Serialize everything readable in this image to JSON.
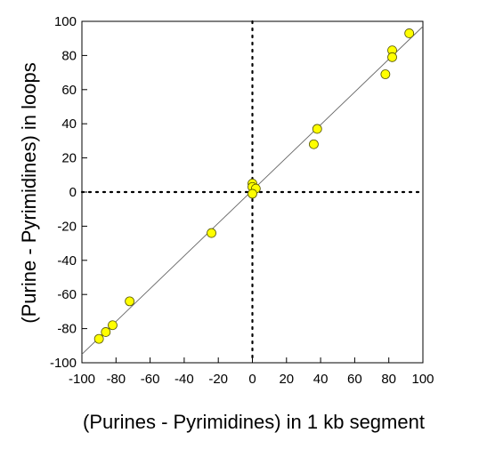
{
  "chart_data": {
    "type": "scatter",
    "title": "",
    "xlabel": "(Purines - Pyrimidines) in 1 kb segment",
    "ylabel": "(Purine - Pyrimidines) in loops",
    "xlim": [
      -100,
      100
    ],
    "ylim": [
      -100,
      100
    ],
    "x_ticks": [
      -100,
      -80,
      -60,
      -40,
      -20,
      0,
      20,
      40,
      60,
      80,
      100
    ],
    "y_ticks": [
      -100,
      -80,
      -60,
      -40,
      -20,
      0,
      20,
      40,
      60,
      80,
      100
    ],
    "x_tick_labels": [
      "-100",
      "-80",
      "-60",
      "-40",
      "-20",
      "0",
      "20",
      "40",
      "60",
      "80",
      "100"
    ],
    "y_tick_labels": [
      "-100",
      "-80",
      "-60",
      "-40",
      "-20",
      "0",
      "20",
      "40",
      "60",
      "80",
      "100"
    ],
    "grid": false,
    "reference_lines": [
      "dotted vertical at x=0",
      "dotted horizontal at y=0"
    ],
    "fit_line": {
      "x": [
        -100,
        100
      ],
      "y": [
        -95,
        97
      ]
    },
    "marker_color": "#ffff00",
    "marker_edge_color": "#555500",
    "points": [
      {
        "x": -90,
        "y": -86
      },
      {
        "x": -86,
        "y": -82
      },
      {
        "x": -82,
        "y": -78
      },
      {
        "x": -72,
        "y": -64
      },
      {
        "x": -24,
        "y": -24
      },
      {
        "x": 0,
        "y": 5
      },
      {
        "x": 0,
        "y": 3
      },
      {
        "x": 2,
        "y": 2
      },
      {
        "x": 0,
        "y": -1
      },
      {
        "x": 36,
        "y": 28
      },
      {
        "x": 38,
        "y": 37
      },
      {
        "x": 78,
        "y": 69
      },
      {
        "x": 82,
        "y": 83
      },
      {
        "x": 82,
        "y": 79
      },
      {
        "x": 92,
        "y": 93
      }
    ]
  }
}
